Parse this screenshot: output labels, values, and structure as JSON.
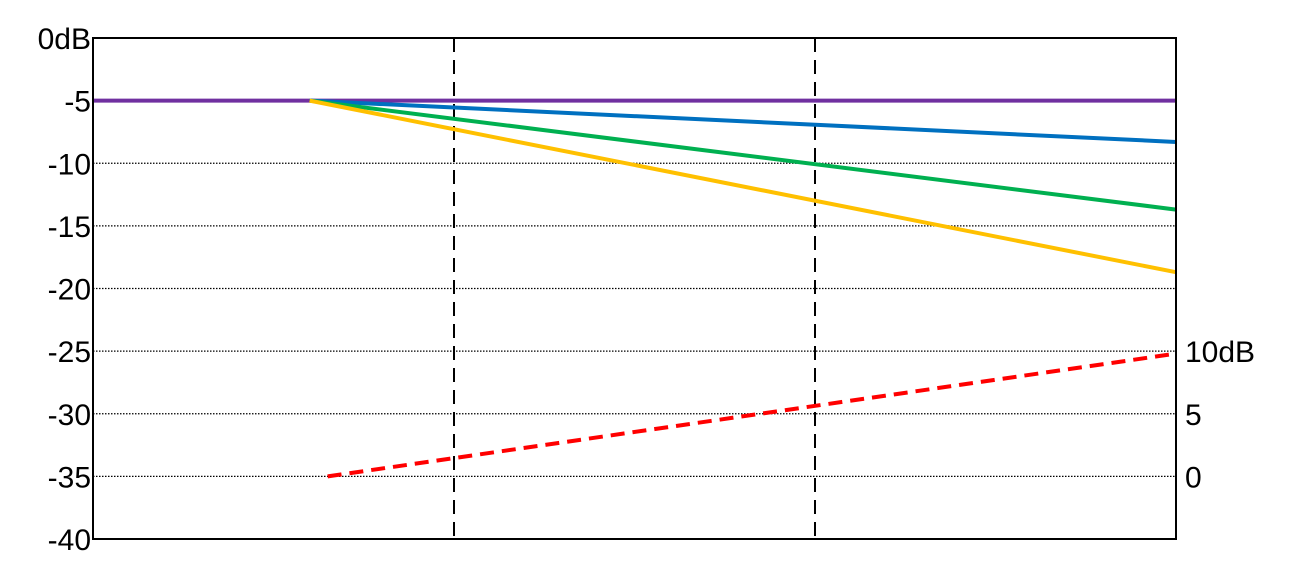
{
  "chart_data": {
    "type": "line",
    "title": "",
    "xlabel": "",
    "ylabel": "",
    "ylim": [
      -40,
      0
    ],
    "xlim": [
      0,
      3
    ],
    "grid": true,
    "legend": "none",
    "y_ticks": [
      {
        "value": 0,
        "label": "0dB"
      },
      {
        "value": -5,
        "label": "-5"
      },
      {
        "value": -10,
        "label": "-10"
      },
      {
        "value": -15,
        "label": "-15"
      },
      {
        "value": -20,
        "label": "-20"
      },
      {
        "value": -25,
        "label": "-25"
      },
      {
        "value": -30,
        "label": "-30"
      },
      {
        "value": -35,
        "label": "-35"
      },
      {
        "value": -40,
        "label": "-40"
      }
    ],
    "y2_ticks": [
      {
        "value": 10,
        "label": "10dB",
        "at_left": -25
      },
      {
        "value": 5,
        "label": "5",
        "at_left": -30
      },
      {
        "value": 0,
        "label": "0",
        "at_left": -35
      }
    ],
    "x_dividers": [
      1,
      2
    ],
    "series": [
      {
        "color": "#7030a0",
        "line": "solid",
        "axis": "left",
        "points": [
          [
            0,
            -5
          ],
          [
            3,
            -5
          ]
        ]
      },
      {
        "color": "#0070c0",
        "line": "solid",
        "axis": "left",
        "points": [
          [
            0.6,
            -5
          ],
          [
            3,
            -8.3
          ]
        ]
      },
      {
        "color": "#00b050",
        "line": "solid",
        "axis": "left",
        "points": [
          [
            0.6,
            -5
          ],
          [
            3,
            -13.7
          ]
        ]
      },
      {
        "color": "#ffc000",
        "line": "solid",
        "axis": "left",
        "points": [
          [
            0.6,
            -5
          ],
          [
            3,
            -18.7
          ]
        ]
      },
      {
        "color": "#ff0000",
        "line": "dashed",
        "axis": "right",
        "points": [
          [
            0.65,
            0
          ],
          [
            3,
            9.8
          ]
        ]
      }
    ]
  }
}
